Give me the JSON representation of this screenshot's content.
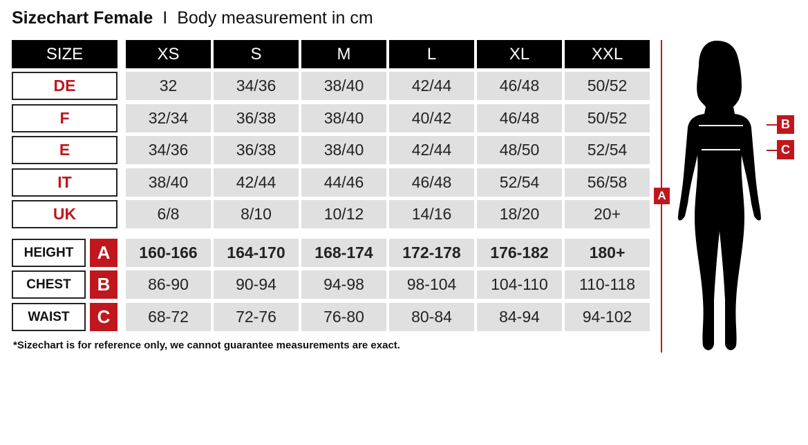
{
  "title": {
    "main": "Sizechart Female",
    "separator": "I",
    "subtitle": "Body measurement in cm"
  },
  "header": {
    "size_label": "SIZE",
    "sizes": [
      "XS",
      "S",
      "M",
      "L",
      "XL",
      "XXL"
    ]
  },
  "conversion_rows": [
    {
      "label": "DE",
      "values": [
        "32",
        "34/36",
        "38/40",
        "42/44",
        "46/48",
        "50/52"
      ]
    },
    {
      "label": "F",
      "values": [
        "32/34",
        "36/38",
        "38/40",
        "40/42",
        "46/48",
        "50/52"
      ]
    },
    {
      "label": "E",
      "values": [
        "34/36",
        "36/38",
        "38/40",
        "42/44",
        "48/50",
        "52/54"
      ]
    },
    {
      "label": "IT",
      "values": [
        "38/40",
        "42/44",
        "44/46",
        "46/48",
        "52/54",
        "56/58"
      ]
    },
    {
      "label": "UK",
      "values": [
        "6/8",
        "8/10",
        "10/12",
        "14/16",
        "18/20",
        "20+"
      ]
    }
  ],
  "measurement_rows": [
    {
      "label": "HEIGHT",
      "key": "A",
      "values": [
        "160-166",
        "164-170",
        "168-174",
        "172-178",
        "176-182",
        "180+"
      ]
    },
    {
      "label": "CHEST",
      "key": "B",
      "values": [
        "86-90",
        "90-94",
        "94-98",
        "98-104",
        "104-110",
        "110-118"
      ]
    },
    {
      "label": "WAIST",
      "key": "C",
      "values": [
        "68-72",
        "72-76",
        "76-80",
        "80-84",
        "84-94",
        "94-102"
      ]
    }
  ],
  "figure": {
    "height_marker": "A",
    "chest_marker": "B",
    "waist_marker": "C"
  },
  "footnote": "*Sizechart is for reference only, we cannot guarantee measurements are exact.",
  "colors": {
    "accent": "#c0161d",
    "header": "#000000",
    "cell": "#e0e0e0"
  }
}
